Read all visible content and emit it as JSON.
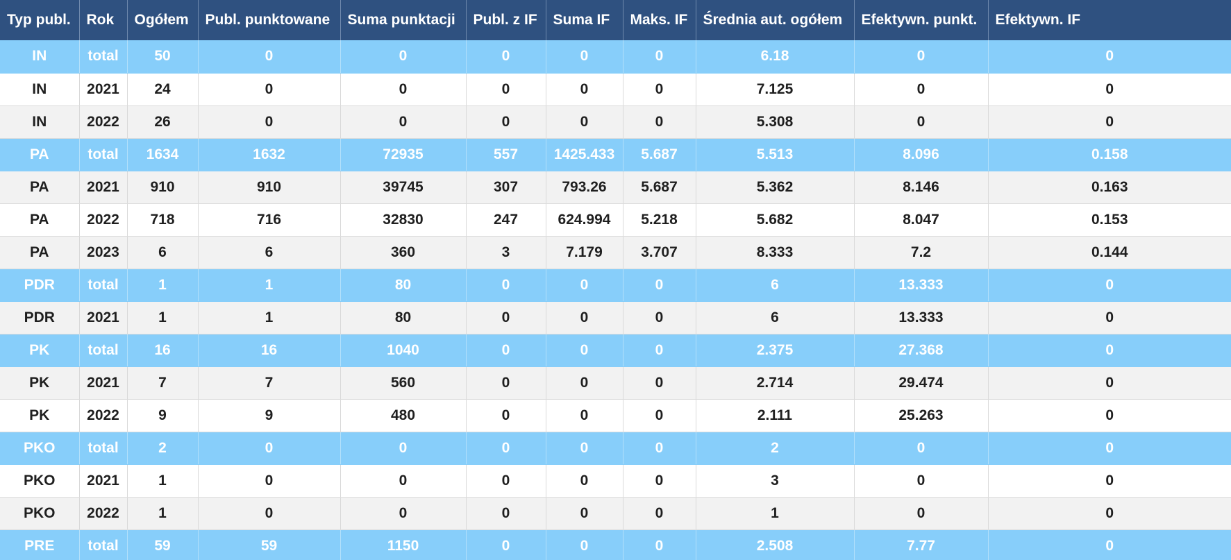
{
  "columns": [
    "Typ publ.",
    "Rok",
    "Ogółem",
    "Publ. punktowane",
    "Suma punktacji",
    "Publ. z IF",
    "Suma IF",
    "Maks. IF",
    "Średnia aut. ogółem",
    "Efektywn. punkt.",
    "Efektywn. IF"
  ],
  "rows": [
    {
      "kind": "total",
      "cells": [
        "IN",
        "total",
        "50",
        "0",
        "0",
        "0",
        "0",
        "0",
        "6.18",
        "0",
        "0"
      ]
    },
    {
      "kind": "even",
      "cells": [
        "IN",
        "2021",
        "24",
        "0",
        "0",
        "0",
        "0",
        "0",
        "7.125",
        "0",
        "0"
      ]
    },
    {
      "kind": "odd",
      "cells": [
        "IN",
        "2022",
        "26",
        "0",
        "0",
        "0",
        "0",
        "0",
        "5.308",
        "0",
        "0"
      ]
    },
    {
      "kind": "total",
      "cells": [
        "PA",
        "total",
        "1634",
        "1632",
        "72935",
        "557",
        "1425.433",
        "5.687",
        "5.513",
        "8.096",
        "0.158"
      ]
    },
    {
      "kind": "odd",
      "cells": [
        "PA",
        "2021",
        "910",
        "910",
        "39745",
        "307",
        "793.26",
        "5.687",
        "5.362",
        "8.146",
        "0.163"
      ]
    },
    {
      "kind": "even",
      "cells": [
        "PA",
        "2022",
        "718",
        "716",
        "32830",
        "247",
        "624.994",
        "5.218",
        "5.682",
        "8.047",
        "0.153"
      ]
    },
    {
      "kind": "odd",
      "cells": [
        "PA",
        "2023",
        "6",
        "6",
        "360",
        "3",
        "7.179",
        "3.707",
        "8.333",
        "7.2",
        "0.144"
      ]
    },
    {
      "kind": "total",
      "cells": [
        "PDR",
        "total",
        "1",
        "1",
        "80",
        "0",
        "0",
        "0",
        "6",
        "13.333",
        "0"
      ]
    },
    {
      "kind": "odd",
      "cells": [
        "PDR",
        "2021",
        "1",
        "1",
        "80",
        "0",
        "0",
        "0",
        "6",
        "13.333",
        "0"
      ]
    },
    {
      "kind": "total",
      "cells": [
        "PK",
        "total",
        "16",
        "16",
        "1040",
        "0",
        "0",
        "0",
        "2.375",
        "27.368",
        "0"
      ]
    },
    {
      "kind": "odd",
      "cells": [
        "PK",
        "2021",
        "7",
        "7",
        "560",
        "0",
        "0",
        "0",
        "2.714",
        "29.474",
        "0"
      ]
    },
    {
      "kind": "even",
      "cells": [
        "PK",
        "2022",
        "9",
        "9",
        "480",
        "0",
        "0",
        "0",
        "2.111",
        "25.263",
        "0"
      ]
    },
    {
      "kind": "total",
      "cells": [
        "PKO",
        "total",
        "2",
        "0",
        "0",
        "0",
        "0",
        "0",
        "2",
        "0",
        "0"
      ]
    },
    {
      "kind": "even",
      "cells": [
        "PKO",
        "2021",
        "1",
        "0",
        "0",
        "0",
        "0",
        "0",
        "3",
        "0",
        "0"
      ]
    },
    {
      "kind": "odd",
      "cells": [
        "PKO",
        "2022",
        "1",
        "0",
        "0",
        "0",
        "0",
        "0",
        "1",
        "0",
        "0"
      ]
    },
    {
      "kind": "total",
      "cells": [
        "PRE",
        "total",
        "59",
        "59",
        "1150",
        "0",
        "0",
        "0",
        "2.508",
        "7.77",
        "0"
      ]
    }
  ]
}
